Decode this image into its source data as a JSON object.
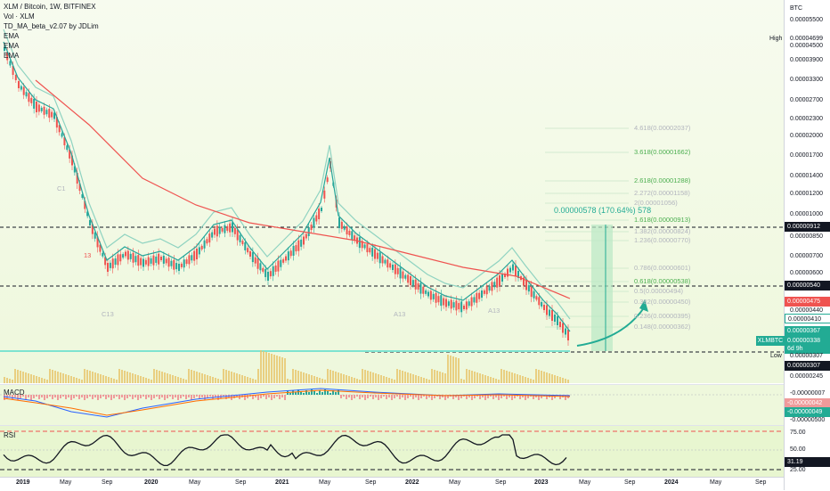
{
  "header": {
    "symbol": "XLM / Bitcoin, 1W, BITFINEX",
    "vol": "Vol · XLM",
    "indicator": "TD_MA_beta_v2.07 by JDLim",
    "ema1": "EMA",
    "ema2": "EMA",
    "ema3": "EMA"
  },
  "price_axis": {
    "currency": "BTC",
    "high_label": "High",
    "high_value": "0.00004699",
    "labels": [
      "0.00005500",
      "0.00004500",
      "0.00003900",
      "0.00003300",
      "0.00002700",
      "0.00002300",
      "0.00002000",
      "0.00001700",
      "0.00001400",
      "0.00001200",
      "0.00001000",
      "0.00000850",
      "0.00000700",
      "0.00000600",
      "0.00000440",
      "0.00000245"
    ],
    "tag_912": "0.00000912",
    "tag_540": "0.00000540",
    "tag_475": "0.00000475",
    "tag_410": "0.00000410",
    "tag_367": "0.00000367",
    "tag_pair": "XLMBTC",
    "tag_338": "0.00000338",
    "tag_countdown": "6d 9h",
    "tag_307a": "0.00000307",
    "tag_307b": "0.00000307",
    "low_label": "Low"
  },
  "fib_levels": {
    "l4618": "4.618(0.00002037)",
    "l3618": "3.618(0.00001662)",
    "l2618": "2.618(0.00001288)",
    "l2272": "2.272(0.00001158)",
    "l2": "2(0.00001056)",
    "l1618": "1.618(0.00000913)",
    "l1382": "1.382(0.00000824)",
    "l1236": "1.236(0.00000770)",
    "l0786": "0.786(0.00000601)",
    "l0618": "0.618(0.00000538)",
    "l05": "0.5(0.00000494)",
    "l0382": "0.382(0.00000450)",
    "l0236": "0.236(0.00000395)",
    "l0148": "0.148(0.00000362)"
  },
  "measure": {
    "label": "0.00000578 (170.64%) 578"
  },
  "markers": {
    "c13": "C13",
    "a13a": "A13",
    "a13b": "A13",
    "c1": "C1",
    "n13": "13"
  },
  "macd": {
    "title": "MACD",
    "v1": "-0.00000007",
    "v2": "-0.00000042",
    "v3": "-0.00000049",
    "v4": "-0.00000500"
  },
  "rsi": {
    "title": "RSI",
    "l75": "75.00",
    "l50": "50.00",
    "value": "31.19",
    "l25": "25.00"
  },
  "time_axis": [
    "2019",
    "May",
    "Sep",
    "2020",
    "May",
    "Sep",
    "2021",
    "May",
    "Sep",
    "2022",
    "May",
    "Sep",
    "2023",
    "May",
    "Sep",
    "2024",
    "May",
    "Sep"
  ],
  "colors": {
    "up": "#26a69a",
    "down": "#ef5350",
    "ema_fast": "#26a69a",
    "ema_slow": "#ef5350",
    "tag_blue": "#131722",
    "tag_red": "#ef5350",
    "tag_green": "#22ab94"
  }
}
